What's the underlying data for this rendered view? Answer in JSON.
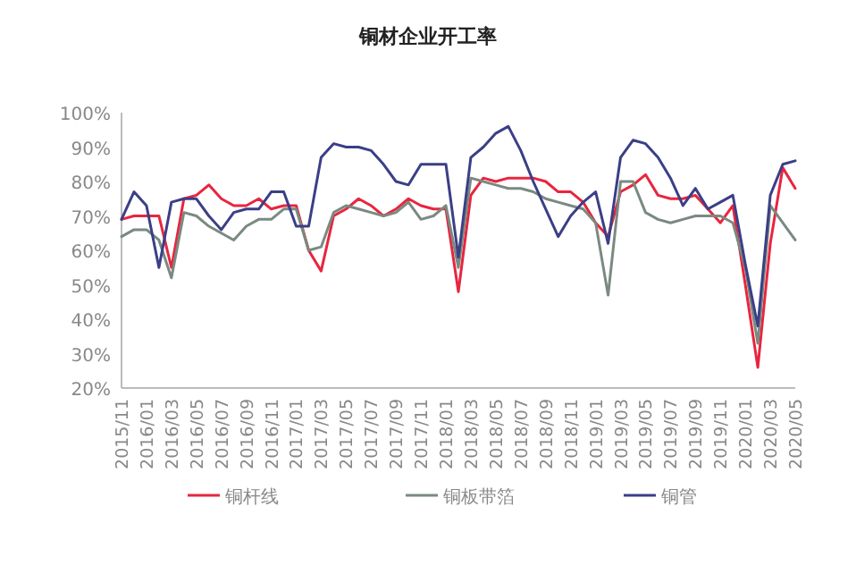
{
  "chart_data": {
    "type": "line",
    "title": "铜材企业开工率",
    "categories": [
      "2015/11",
      null,
      "2016/01",
      null,
      "2016/03",
      null,
      "2016/05",
      null,
      "2016/07",
      null,
      "2016/09",
      null,
      "2016/11",
      null,
      "2017/01",
      null,
      "2017/03",
      null,
      "2017/05",
      null,
      "2017/07",
      null,
      "2017/09",
      null,
      "2017/11",
      null,
      "2018/01",
      null,
      "2018/03",
      null,
      "2018/05",
      null,
      "2018/07",
      null,
      "2018/09",
      null,
      "2018/11",
      null,
      "2019/01",
      null,
      "2019/03",
      null,
      "2019/05",
      null,
      "2019/07",
      null,
      "2019/09",
      null,
      "2019/11",
      null,
      "2020/01",
      null,
      "2020/03",
      null,
      "2020/05"
    ],
    "series": [
      {
        "name": "铜杆线",
        "color": "#e8253f",
        "values": [
          69,
          70,
          70,
          70,
          55,
          75,
          76,
          79,
          75,
          73,
          73,
          75,
          72,
          73,
          73,
          60,
          54,
          70,
          72,
          75,
          73,
          70,
          72,
          75,
          73,
          72,
          72,
          48,
          76,
          81,
          80,
          81,
          81,
          81,
          80,
          77,
          77,
          74,
          68,
          64,
          77,
          79,
          82,
          76,
          75,
          75,
          76,
          72,
          68,
          73,
          50,
          26,
          62,
          84,
          78
        ]
      },
      {
        "name": "铜板带箔",
        "color": "#7a8a80",
        "values": [
          64,
          66,
          66,
          63,
          52,
          71,
          70,
          67,
          65,
          63,
          67,
          69,
          69,
          72,
          72,
          60,
          61,
          71,
          73,
          72,
          71,
          70,
          71,
          74,
          69,
          70,
          73,
          55,
          81,
          80,
          79,
          78,
          78,
          77,
          75,
          74,
          73,
          72,
          68,
          47,
          80,
          80,
          71,
          69,
          68,
          69,
          70,
          70,
          70,
          68,
          55,
          33,
          73,
          68,
          63
        ]
      },
      {
        "name": "铜管",
        "color": "#3b3f86",
        "values": [
          69,
          77,
          73,
          55,
          74,
          75,
          75,
          70,
          66,
          71,
          72,
          72,
          77,
          77,
          67,
          67,
          87,
          91,
          90,
          90,
          89,
          85,
          80,
          79,
          85,
          85,
          85,
          58,
          87,
          90,
          94,
          96,
          89,
          80,
          72,
          64,
          70,
          74,
          77,
          62,
          87,
          92,
          91,
          87,
          81,
          73,
          78,
          72,
          74,
          76,
          56,
          38,
          76,
          85,
          86
        ]
      }
    ],
    "ylim": [
      20,
      100
    ],
    "yticks": [
      {
        "value": 20,
        "label": "20%"
      },
      {
        "value": 30,
        "label": "30%"
      },
      {
        "value": 40,
        "label": "40%"
      },
      {
        "value": 50,
        "label": "50%"
      },
      {
        "value": 60,
        "label": "60%"
      },
      {
        "value": 70,
        "label": "70%"
      },
      {
        "value": 80,
        "label": "80%"
      },
      {
        "value": 90,
        "label": "90%"
      },
      {
        "value": 100,
        "label": "100%"
      }
    ],
    "legend": "bottom"
  }
}
